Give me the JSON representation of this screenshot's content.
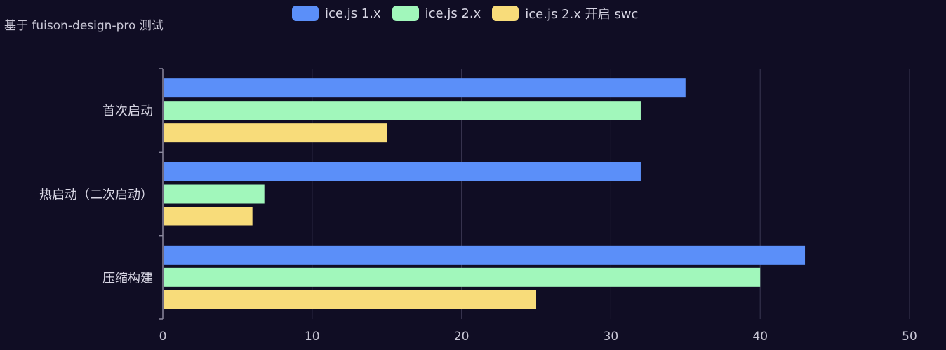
{
  "chart_data": {
    "type": "bar",
    "orientation": "horizontal",
    "title": "基于 fuison-design-pro 测试",
    "categories": [
      "首次启动",
      "热启动（二次启动）",
      "压缩构建"
    ],
    "series": [
      {
        "name": "ice.js 1.x",
        "values": [
          35,
          32,
          43
        ],
        "color": "#5b8ff9"
      },
      {
        "name": "ice.js 2.x",
        "values": [
          32,
          6.8,
          40
        ],
        "color": "#a1f7bb"
      },
      {
        "name": "ice.js 2.x 开启 swc",
        "values": [
          15,
          6,
          25
        ],
        "color": "#f8dc7a"
      }
    ],
    "xlim": [
      0,
      50
    ],
    "xticks": [
      0,
      10,
      20,
      30,
      40,
      50
    ],
    "xlabel": "",
    "ylabel": "",
    "grid": true,
    "legend_position": "top"
  }
}
